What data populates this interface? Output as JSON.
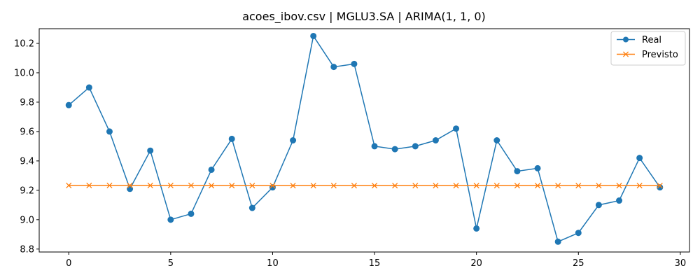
{
  "chart_data": {
    "type": "line",
    "title": "acoes_ibov.csv | MGLU3.SA | ARIMA(1, 1, 0)",
    "xlabel": "",
    "ylabel": "",
    "xlim": [
      -1.45,
      30.45
    ],
    "ylim": [
      8.78,
      10.3
    ],
    "x_ticks": [
      0,
      5,
      10,
      15,
      20,
      25,
      30
    ],
    "y_ticks": [
      8.8,
      9.0,
      9.2,
      9.4,
      9.6,
      9.8,
      10.0,
      10.2
    ],
    "grid": false,
    "legend_position": "top-right",
    "x": [
      0,
      1,
      2,
      3,
      4,
      5,
      6,
      7,
      8,
      9,
      10,
      11,
      12,
      13,
      14,
      15,
      16,
      17,
      18,
      19,
      20,
      21,
      22,
      23,
      24,
      25,
      26,
      27,
      28,
      29
    ],
    "series": [
      {
        "name": "Real",
        "color": "#1f77b4",
        "marker": "circle",
        "values": [
          9.78,
          9.9,
          9.6,
          9.21,
          9.47,
          9.0,
          9.04,
          9.34,
          9.55,
          9.08,
          9.22,
          9.54,
          10.25,
          10.04,
          10.06,
          9.5,
          9.48,
          9.5,
          9.54,
          9.62,
          8.94,
          9.54,
          9.33,
          9.35,
          8.85,
          8.91,
          9.1,
          9.13,
          9.42,
          9.22
        ]
      },
      {
        "name": "Previsto",
        "color": "#ff7f0e",
        "marker": "x",
        "values": [
          9.233,
          9.233,
          9.233,
          9.233,
          9.233,
          9.233,
          9.233,
          9.232,
          9.232,
          9.232,
          9.232,
          9.232,
          9.232,
          9.232,
          9.232,
          9.232,
          9.232,
          9.232,
          9.232,
          9.232,
          9.232,
          9.232,
          9.232,
          9.232,
          9.232,
          9.232,
          9.232,
          9.232,
          9.232,
          9.232
        ]
      }
    ]
  }
}
